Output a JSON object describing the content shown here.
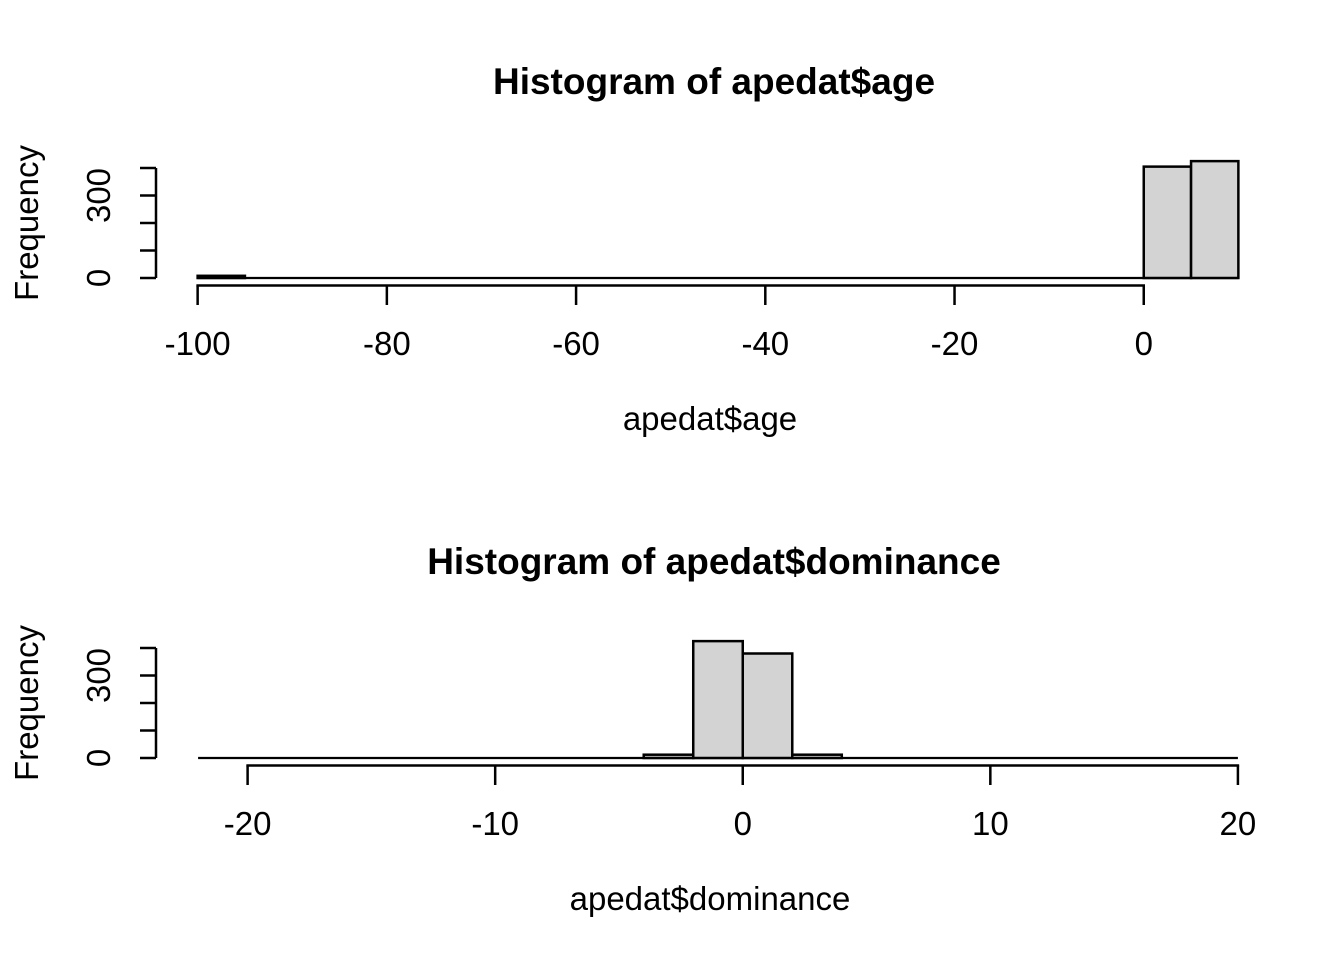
{
  "page": {
    "background_color": "#ffffff",
    "foreground_color": "#000000",
    "description": "Two base-R style histograms stacked vertically"
  },
  "chart_data": [
    {
      "type": "bar",
      "subtype": "histogram",
      "title": "Histogram of apedat$age",
      "xlabel": "apedat$age",
      "ylabel": "Frequency",
      "bar_fill": "#d3d3d3",
      "bar_stroke": "#000000",
      "grid": "off",
      "legend": "none",
      "x_ticks": [
        -100,
        -80,
        -60,
        -40,
        -20,
        0
      ],
      "x_tick_labels": [
        "-100",
        "-80",
        "-60",
        "-40",
        "-20",
        "0"
      ],
      "x_range": [
        -104.4,
        14.4
      ],
      "y_ticks": [
        0,
        100,
        200,
        300,
        400
      ],
      "y_tick_labels": {
        "0": "0",
        "300": "300"
      },
      "ylim": [
        0,
        400
      ],
      "bin_width": 5,
      "bins": [
        {
          "from": -100,
          "to": -95,
          "count": 8
        },
        {
          "from": 0,
          "to": 5,
          "count": 405
        },
        {
          "from": 5,
          "to": 10,
          "count": 425
        }
      ],
      "zero_line_span": [
        -100,
        10
      ]
    },
    {
      "type": "bar",
      "subtype": "histogram",
      "title": "Histogram of apedat$dominance",
      "xlabel": "apedat$dominance",
      "ylabel": "Frequency",
      "bar_fill": "#d3d3d3",
      "bar_stroke": "#000000",
      "grid": "off",
      "legend": "none",
      "x_ticks": [
        -20,
        -10,
        0,
        10,
        20
      ],
      "x_tick_labels": [
        "-20",
        "-10",
        "0",
        "10",
        "20"
      ],
      "x_range": [
        -23.7,
        21.7
      ],
      "y_ticks": [
        0,
        100,
        200,
        300,
        400
      ],
      "y_tick_labels": {
        "0": "0",
        "300": "300"
      },
      "ylim": [
        0,
        400
      ],
      "bin_width": 2,
      "bins": [
        {
          "from": -4,
          "to": -2,
          "count": 12
        },
        {
          "from": -2,
          "to": 0,
          "count": 425
        },
        {
          "from": 0,
          "to": 2,
          "count": 380
        },
        {
          "from": 2,
          "to": 4,
          "count": 12
        }
      ],
      "zero_line_span": [
        -22,
        20
      ]
    }
  ]
}
